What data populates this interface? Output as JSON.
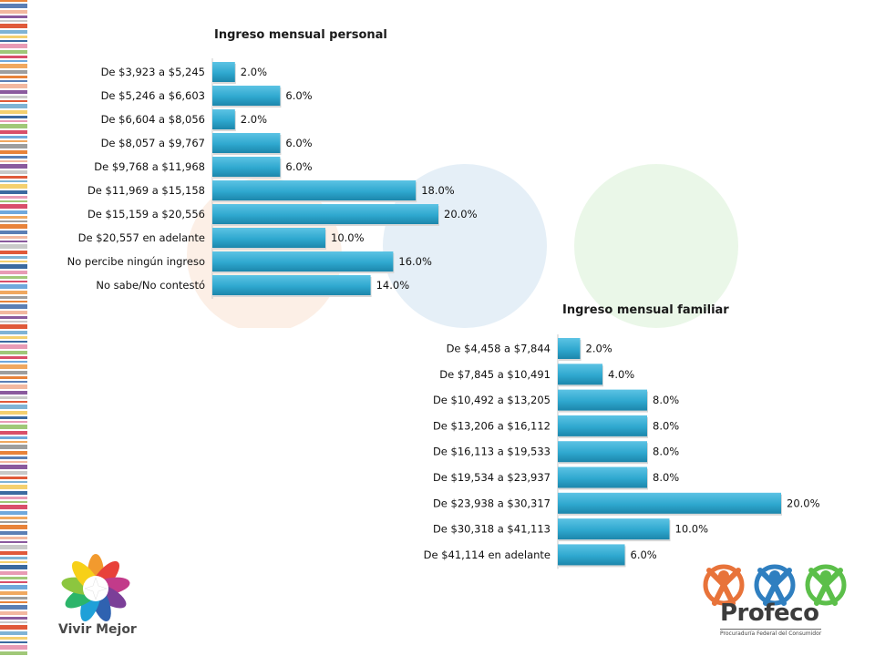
{
  "colors": {
    "bar": "#2fa8cf",
    "bar_dark": "#1c86ab",
    "stripes": [
      "#e8833a",
      "#5b7fb5",
      "#f2b8a0",
      "#8a5a9e",
      "#c9c9c9",
      "#e05a3a",
      "#7fb3d5",
      "#f4d06f",
      "#3b6aa0",
      "#e89bb5",
      "#a0c878",
      "#d94f6a",
      "#6fa8dc",
      "#f0a860",
      "#9e9e9e"
    ],
    "profeco_icons": [
      "#e8733a",
      "#2f7fc0",
      "#5cbf4a"
    ]
  },
  "logos": {
    "vivir_mejor": "Vivir Mejor",
    "profeco": "Profeco",
    "profeco_subtitle": "Procuraduría Federal del Consumidor"
  },
  "chart_data": [
    {
      "type": "bar",
      "orientation": "horizontal",
      "title": "Ingreso mensual personal",
      "categories": [
        "De $3,923 a $5,245",
        "De $5,246 a $6,603",
        "De $6,604 a $8,056",
        "De $8,057 a $9,767",
        "De $9,768 a $11,968",
        "De $11,969 a $15,158",
        "De $15,159 a $20,556",
        "De $20,557 en adelante",
        "No percibe ningún ingreso",
        "No sabe/No contestó"
      ],
      "values": [
        2.0,
        6.0,
        2.0,
        6.0,
        6.0,
        18.0,
        20.0,
        10.0,
        16.0,
        14.0
      ],
      "value_labels": [
        "2.0%",
        "6.0%",
        "2.0%",
        "6.0%",
        "6.0%",
        "18.0%",
        "20.0%",
        "10.0%",
        "16.0%",
        "14.0%"
      ],
      "xlim": [
        0,
        20
      ]
    },
    {
      "type": "bar",
      "orientation": "horizontal",
      "title": "Ingreso mensual familiar",
      "categories": [
        "De $4,458 a $7,844",
        "De $7,845 a $10,491",
        "De $10,492 a $13,205",
        "De $13,206 a $16,112",
        "De $16,113 a $19,533",
        "De $19,534 a $23,937",
        "De $23,938 a $30,317",
        "De $30,318 a $41,113",
        "De $41,114 en adelante"
      ],
      "values": [
        2.0,
        4.0,
        8.0,
        8.0,
        8.0,
        8.0,
        20.0,
        10.0,
        6.0
      ],
      "value_labels": [
        "2.0%",
        "4.0%",
        "8.0%",
        "8.0%",
        "8.0%",
        "8.0%",
        "20.0%",
        "10.0%",
        "6.0%"
      ],
      "xlim": [
        0,
        20
      ]
    }
  ]
}
